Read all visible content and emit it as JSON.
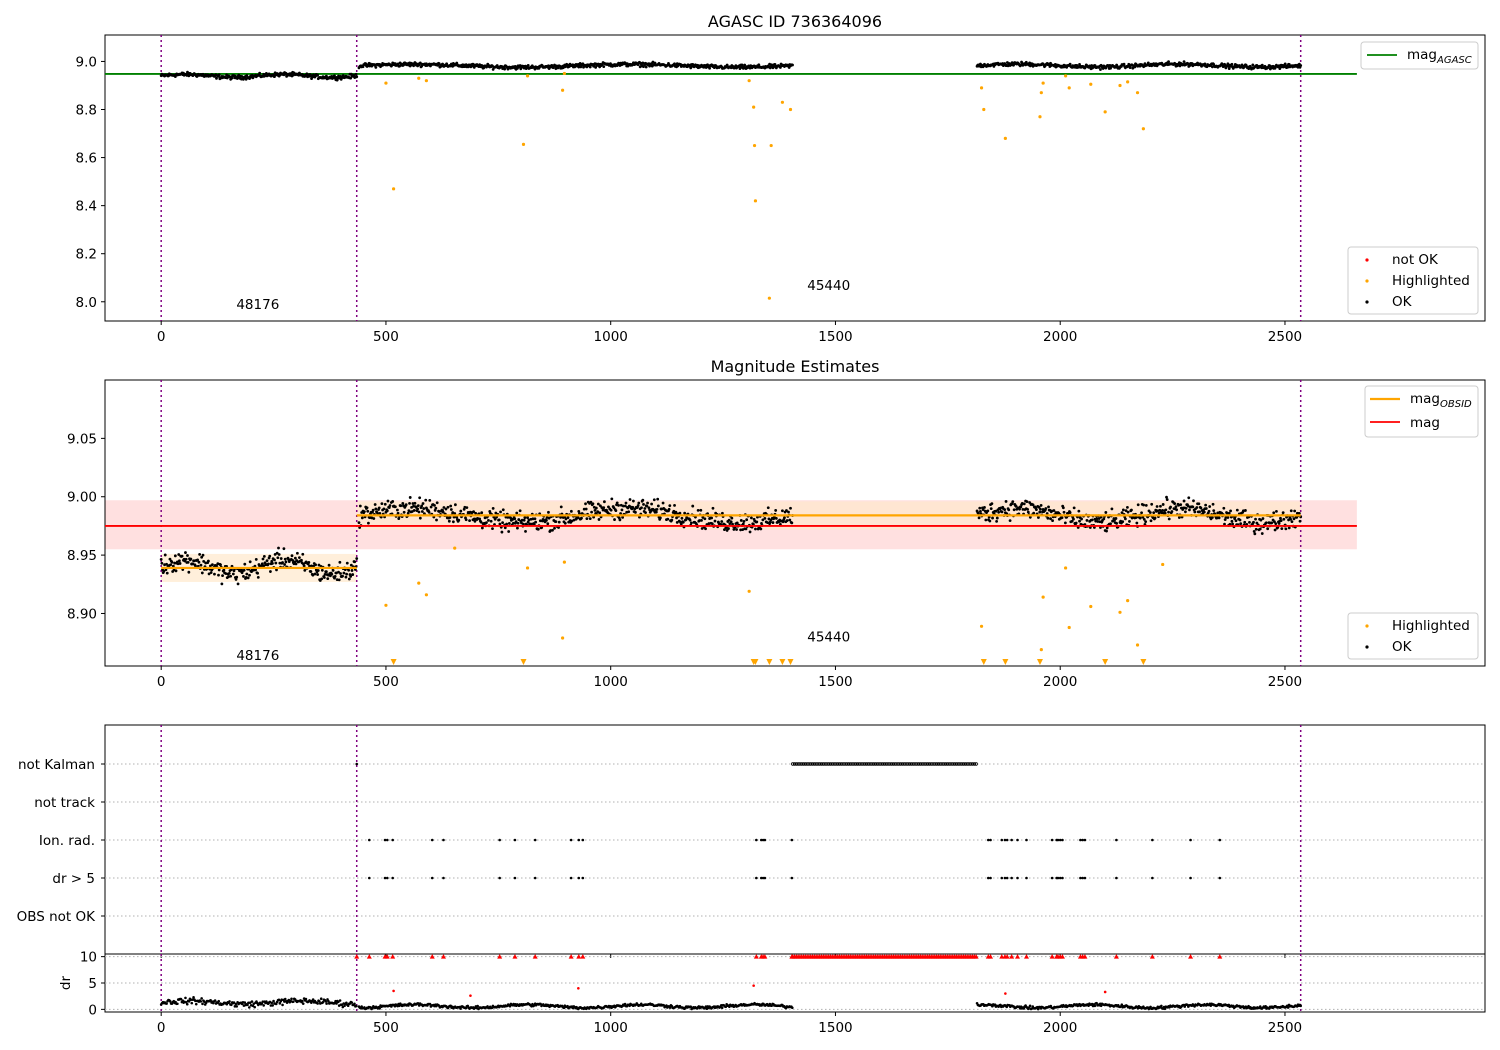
{
  "figure": {
    "title_top": "AGASC ID 736364096",
    "title_mid": "Magnitude Estimates"
  },
  "colors": {
    "ok": "#000000",
    "highlighted": "#ffa500",
    "not_ok": "#ff0000",
    "mag_agasc_line": "#008000",
    "mag_line": "#ff0000",
    "mag_obsid_line": "#ffa500",
    "obs_boundary": "#800080",
    "mag_band": "#ffe0e0",
    "obsid_band": "#ffe8cc"
  },
  "observations": [
    {
      "obsid_label": "48176",
      "start": 0,
      "end": 435,
      "mag_obsid": 8.939
    },
    {
      "obsid_label": "45440",
      "start": 435,
      "end": 2535,
      "mag_obsid": 8.984
    }
  ],
  "chart_data": [
    {
      "type": "scatter",
      "title": "AGASC ID 736364096",
      "x_ticks": [
        0,
        500,
        1000,
        1500,
        2000,
        2500
      ],
      "y_ticks": [
        "8.0",
        "8.2",
        "8.4",
        "8.6",
        "8.8",
        "9.0"
      ],
      "xlim": [
        -125,
        2945
      ],
      "ylim": [
        7.92,
        9.11
      ],
      "mag_agasc": 8.948,
      "legend_lines": [
        {
          "label": "mag",
          "subscript": "AGASC"
        }
      ],
      "legend_points": [
        "not OK",
        "Highlighted",
        "OK"
      ],
      "ok_segments": [
        {
          "x_start": 0,
          "x_end": 435,
          "y_mean": 8.94,
          "y_spread": 0.012
        },
        {
          "x_start": 440,
          "x_end": 1405,
          "y_mean": 8.982,
          "y_spread": 0.012
        },
        {
          "x_start": 1815,
          "x_end": 2535,
          "y_mean": 8.983,
          "y_spread": 0.012
        }
      ],
      "highlighted_points": [
        {
          "x": 500,
          "y": 8.91
        },
        {
          "x": 517,
          "y": 8.47
        },
        {
          "x": 573,
          "y": 8.93
        },
        {
          "x": 590,
          "y": 8.92
        },
        {
          "x": 806,
          "y": 8.655
        },
        {
          "x": 815,
          "y": 8.94
        },
        {
          "x": 893,
          "y": 8.88
        },
        {
          "x": 897,
          "y": 8.95
        },
        {
          "x": 1308,
          "y": 8.92
        },
        {
          "x": 1318,
          "y": 8.81
        },
        {
          "x": 1320,
          "y": 8.65
        },
        {
          "x": 1322,
          "y": 8.42
        },
        {
          "x": 1353,
          "y": 8.015
        },
        {
          "x": 1357,
          "y": 8.65
        },
        {
          "x": 1382,
          "y": 8.83
        },
        {
          "x": 1400,
          "y": 8.8
        },
        {
          "x": 1825,
          "y": 8.89
        },
        {
          "x": 1830,
          "y": 8.8
        },
        {
          "x": 1878,
          "y": 8.68
        },
        {
          "x": 1955,
          "y": 8.77
        },
        {
          "x": 1958,
          "y": 8.87
        },
        {
          "x": 1962,
          "y": 8.91
        },
        {
          "x": 2012,
          "y": 8.94
        },
        {
          "x": 2020,
          "y": 8.89
        },
        {
          "x": 2068,
          "y": 8.905
        },
        {
          "x": 2100,
          "y": 8.79
        },
        {
          "x": 2133,
          "y": 8.9
        },
        {
          "x": 2150,
          "y": 8.915
        },
        {
          "x": 2172,
          "y": 8.87
        },
        {
          "x": 2185,
          "y": 8.72
        }
      ],
      "obs_labels": [
        {
          "text": "48176",
          "x": 215,
          "y": 7.97
        },
        {
          "text": "45440",
          "x": 1485,
          "y": 8.05
        }
      ]
    },
    {
      "type": "scatter",
      "title": "Magnitude Estimates",
      "x_ticks": [
        0,
        500,
        1000,
        1500,
        2000,
        2500
      ],
      "y_ticks": [
        "8.90",
        "8.95",
        "9.00",
        "9.05"
      ],
      "xlim": [
        -125,
        2945
      ],
      "ylim": [
        8.855,
        9.1
      ],
      "mag": 8.975,
      "mag_band": [
        8.955,
        8.997
      ],
      "legend_lines": [
        {
          "label": "mag",
          "subscript": "OBSID"
        },
        {
          "label": "mag",
          "subscript": ""
        }
      ],
      "legend_points": [
        "Highlighted",
        "OK"
      ],
      "ok_segments": [
        {
          "x_start": 0,
          "x_end": 435,
          "y_mean": 8.94,
          "y_spread": 0.012
        },
        {
          "x_start": 440,
          "x_end": 1405,
          "y_mean": 8.984,
          "y_spread": 0.012
        },
        {
          "x_start": 1815,
          "x_end": 2535,
          "y_mean": 8.984,
          "y_spread": 0.012
        }
      ],
      "highlighted_points": [
        {
          "x": 500,
          "y": 8.907
        },
        {
          "x": 573,
          "y": 8.926
        },
        {
          "x": 590,
          "y": 8.916
        },
        {
          "x": 653,
          "y": 8.956
        },
        {
          "x": 815,
          "y": 8.939
        },
        {
          "x": 893,
          "y": 8.879
        },
        {
          "x": 897,
          "y": 8.944
        },
        {
          "x": 1308,
          "y": 8.919
        },
        {
          "x": 1825,
          "y": 8.889
        },
        {
          "x": 1958,
          "y": 8.869
        },
        {
          "x": 1962,
          "y": 8.914
        },
        {
          "x": 2012,
          "y": 8.939
        },
        {
          "x": 2020,
          "y": 8.888
        },
        {
          "x": 2068,
          "y": 8.906
        },
        {
          "x": 2133,
          "y": 8.901
        },
        {
          "x": 2150,
          "y": 8.911
        },
        {
          "x": 2172,
          "y": 8.873
        },
        {
          "x": 2228,
          "y": 8.942
        }
      ],
      "below_range_x": [
        517,
        806,
        1318,
        1322,
        1353,
        1382,
        1400,
        1830,
        1878,
        1955,
        2100,
        2185
      ],
      "obs_labels": [
        {
          "text": "48176",
          "x": 215,
          "y": 8.86
        },
        {
          "text": "45440",
          "x": 1485,
          "y": 8.876
        }
      ]
    },
    {
      "type": "scatter",
      "x_ticks": [
        0,
        500,
        1000,
        1500,
        2000,
        2500
      ],
      "xlim": [
        -125,
        2945
      ],
      "flag_rows": [
        "not Kalman",
        "not track",
        "Ion. rad.",
        "dr > 5",
        "OBS not OK"
      ],
      "not_kalman_points": [
        435
      ],
      "not_kalman_range": [
        1405,
        1815
      ],
      "flag_points_x": [
        463,
        498,
        503,
        515,
        603,
        628,
        753,
        787,
        832,
        912,
        929,
        938,
        1324,
        1335,
        1339,
        1343,
        1403,
        1840,
        1845,
        1870,
        1877,
        1882,
        1892,
        1905,
        1925,
        1982,
        1992,
        1995,
        2000,
        2005,
        2045,
        2050,
        2055,
        2125,
        2205,
        2290,
        2355
      ]
    },
    {
      "type": "scatter",
      "ylabel": "dr",
      "x_ticks": [
        0,
        500,
        1000,
        1500,
        2000,
        2500
      ],
      "y_ticks": [
        "0",
        "5",
        "10"
      ],
      "xlim": [
        -125,
        2945
      ],
      "ylim": [
        -0.5,
        10.5
      ],
      "clipped_value": 10,
      "dr_segments": [
        {
          "x_start": 0,
          "x_end": 435,
          "y_mean": 1.3,
          "y_spread": 0.6
        },
        {
          "x_start": 440,
          "x_end": 1405,
          "y_mean": 0.6,
          "y_spread": 0.3
        },
        {
          "x_start": 1815,
          "x_end": 2535,
          "y_mean": 0.6,
          "y_spread": 0.3
        }
      ],
      "highlighted_points": [
        {
          "x": 517,
          "y": 3.5
        },
        {
          "x": 688,
          "y": 2.6
        },
        {
          "x": 928,
          "y": 4.0
        },
        {
          "x": 1318,
          "y": 4.5
        },
        {
          "x": 1878,
          "y": 3.0
        },
        {
          "x": 2100,
          "y": 3.3
        }
      ]
    }
  ]
}
